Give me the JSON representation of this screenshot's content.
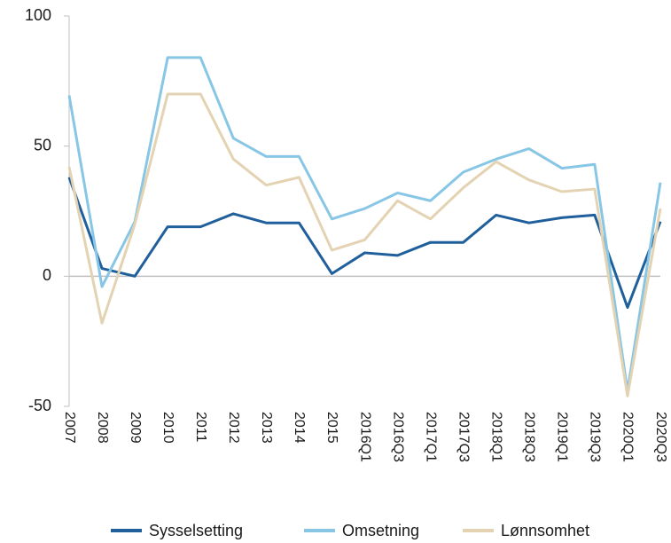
{
  "chart_data": {
    "type": "line",
    "categories": [
      "2007",
      "2008",
      "2009",
      "2010",
      "2011",
      "2012",
      "2013",
      "2014",
      "2015",
      "2016Q1",
      "2016Q3",
      "2017Q1",
      "2017Q3",
      "2018Q1",
      "2018Q3",
      "2019Q1",
      "2019Q3",
      "2020Q1",
      "2020Q3"
    ],
    "series": [
      {
        "name": "Sysselsetting",
        "color": "#1f5f9b",
        "values": [
          38,
          3,
          0,
          19,
          19,
          24,
          20.5,
          20.5,
          1,
          9,
          8,
          13,
          13,
          23.5,
          20.5,
          22.5,
          23.5,
          -12,
          21
        ]
      },
      {
        "name": "Omsetning",
        "color": "#88c6e6",
        "values": [
          69.5,
          -4,
          21,
          84,
          84,
          53,
          46,
          46,
          22,
          26,
          32,
          29,
          40,
          45,
          49,
          41.5,
          43,
          -44,
          36
        ]
      },
      {
        "name": "Lønnsomhet",
        "color": "#e3d3b3",
        "values": [
          42,
          -18,
          20,
          70,
          70,
          45,
          35,
          38,
          10,
          14,
          29,
          22,
          34,
          44,
          37,
          32.5,
          33.5,
          -46,
          26
        ]
      }
    ],
    "ylim": [
      -50,
      100
    ],
    "yticks": [
      -50,
      0,
      50,
      100
    ],
    "legend": "bottom"
  }
}
